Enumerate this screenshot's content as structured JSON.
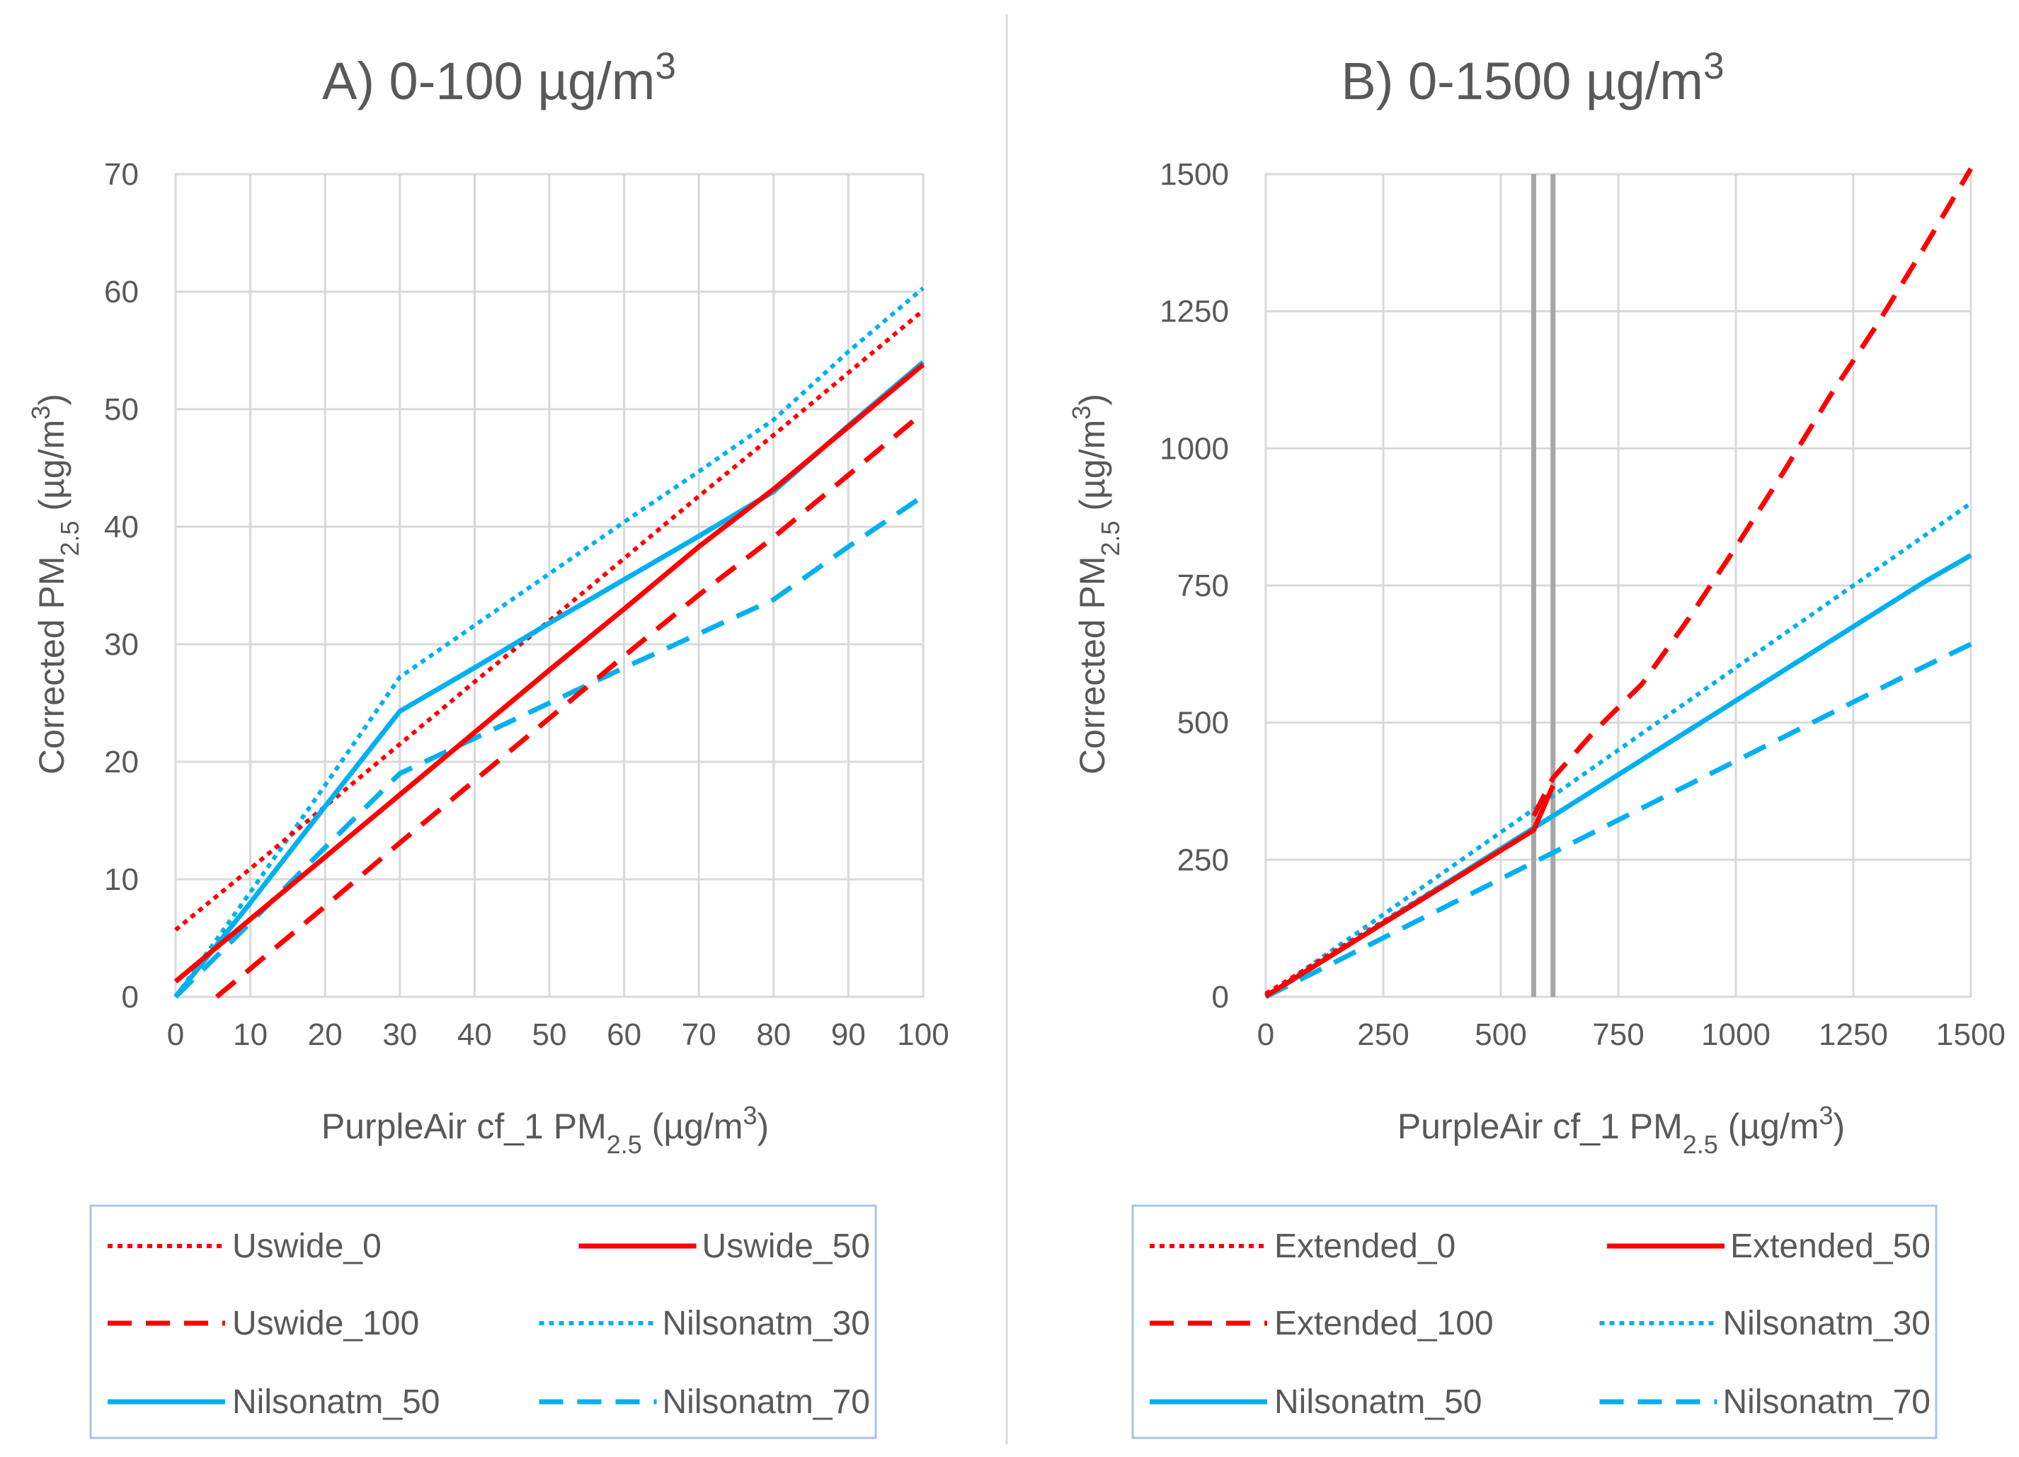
{
  "chart_data": [
    {
      "type": "line",
      "title": "A) 0-100 µg/m³",
      "xlabel": "PurpleAir cf_1 PM2.5 (µg/m³)",
      "ylabel": "Corrected PM2.5 (µg/m³)",
      "xlim": [
        0,
        100
      ],
      "ylim": [
        0,
        70
      ],
      "xticks": [
        0,
        10,
        20,
        30,
        40,
        50,
        60,
        70,
        80,
        90,
        100
      ],
      "yticks": [
        0,
        10,
        20,
        30,
        40,
        50,
        60,
        70
      ],
      "grid": true,
      "legend_position": "bottom",
      "vlines": [],
      "series": [
        {
          "name": "Uswide_0",
          "color": "#ff0000",
          "dash": "dot",
          "x": [
            0,
            10,
            20,
            30,
            40,
            50,
            60,
            70,
            80,
            90,
            100
          ],
          "y": [
            5.7,
            10.9,
            16.2,
            21.5,
            26.8,
            32.0,
            37.3,
            42.6,
            47.8,
            53.1,
            58.4
          ]
        },
        {
          "name": "Uswide_50",
          "color": "#ff0000",
          "dash": "solid",
          "x": [
            0,
            10,
            20,
            30,
            40,
            50,
            60,
            70,
            80,
            90,
            100
          ],
          "y": [
            1.3,
            6.6,
            11.9,
            17.2,
            22.5,
            27.8,
            33.0,
            38.3,
            43.2,
            48.5,
            53.8
          ]
        },
        {
          "name": "Uswide_100",
          "color": "#ff0000",
          "dash": "dash",
          "x": [
            5.5,
            20,
            30,
            40,
            50,
            60,
            70,
            80,
            90,
            100
          ],
          "y": [
            0,
            7.7,
            13.1,
            18.4,
            23.7,
            29.0,
            34.2,
            39.1,
            44.4,
            49.7
          ]
        },
        {
          "name": "Nilsonatm_30",
          "color": "#00b0f0",
          "dash": "dot",
          "x": [
            0,
            10,
            20,
            30,
            40,
            50,
            60,
            70,
            80,
            90,
            100
          ],
          "y": [
            0,
            8.9,
            18.0,
            27.2,
            31.6,
            36.0,
            40.4,
            44.7,
            49.1,
            54.9,
            60.3
          ]
        },
        {
          "name": "Nilsonatm_50",
          "color": "#00b0f0",
          "dash": "solid",
          "x": [
            0,
            10,
            20,
            30,
            40,
            50,
            60,
            70,
            80,
            90,
            100
          ],
          "y": [
            0,
            8.0,
            16.2,
            24.3,
            28.0,
            31.8,
            35.5,
            39.2,
            43.0,
            48.6,
            54.0
          ]
        },
        {
          "name": "Nilsonatm_70",
          "color": "#00b0f0",
          "dash": "dash",
          "x": [
            0,
            10,
            20,
            30,
            40,
            50,
            60,
            70,
            80,
            90,
            100
          ],
          "y": [
            0,
            6.3,
            12.7,
            19.0,
            22.0,
            25.0,
            28.0,
            30.9,
            33.8,
            38.3,
            42.6
          ]
        }
      ],
      "legend": [
        "Uswide_0",
        "Uswide_50",
        "Uswide_100",
        "Nilsonatm_30",
        "Nilsonatm_50",
        "Nilsonatm_70"
      ]
    },
    {
      "type": "line",
      "title": "B) 0-1500 µg/m³",
      "xlabel": "PurpleAir cf_1 PM2.5 (µg/m³)",
      "ylabel": "Corrected PM2.5 (µg/m³)",
      "xlim": [
        0,
        1500
      ],
      "ylim": [
        0,
        1500
      ],
      "xticks": [
        0,
        250,
        500,
        750,
        1000,
        1250,
        1500
      ],
      "yticks": [
        0,
        250,
        500,
        750,
        1000,
        1250,
        1500
      ],
      "grid": true,
      "legend_position": "bottom",
      "vlines": [
        570,
        611
      ],
      "series": [
        {
          "name": "Extended_0",
          "color": "#ff0000",
          "dash": "dot",
          "x": [
            0,
            100,
            200,
            300,
            400,
            500,
            570
          ],
          "y": [
            5.7,
            58.5,
            111.3,
            164.1,
            216.9,
            269.7,
            306.7
          ]
        },
        {
          "name": "Extended_50",
          "color": "#ff0000",
          "dash": "solid",
          "x": [
            0,
            100,
            200,
            300,
            400,
            500,
            570,
            611
          ],
          "y": [
            1.3,
            54.4,
            107.5,
            160.6,
            213.7,
            266.8,
            304.0,
            385.0
          ]
        },
        {
          "name": "Extended_100",
          "color": "#ff0000",
          "dash": "dash",
          "x": [
            570,
            611,
            700,
            800,
            900,
            1000,
            1100,
            1200,
            1300,
            1400,
            1500
          ],
          "y": [
            330,
            399,
            485,
            570,
            690,
            820,
            955,
            1095,
            1225,
            1365,
            1510
          ]
        },
        {
          "name": "Nilsonatm_30",
          "color": "#00b0f0",
          "dash": "dot",
          "x": [
            0,
            100,
            200,
            300,
            400,
            500,
            600,
            700,
            800,
            900,
            1000,
            1100,
            1200,
            1300,
            1400,
            1500
          ],
          "y": [
            0,
            60,
            120,
            180,
            240,
            300,
            360,
            420,
            480,
            540,
            600,
            660,
            720,
            780,
            840,
            900
          ]
        },
        {
          "name": "Nilsonatm_50",
          "color": "#00b0f0",
          "dash": "solid",
          "x": [
            0,
            100,
            200,
            300,
            400,
            500,
            600,
            700,
            800,
            900,
            1000,
            1100,
            1200,
            1300,
            1400,
            1500
          ],
          "y": [
            0,
            54,
            108,
            162,
            216,
            270,
            324,
            378,
            432,
            486,
            540,
            594,
            648,
            702,
            756,
            805
          ]
        },
        {
          "name": "Nilsonatm_70",
          "color": "#00b0f0",
          "dash": "dash",
          "x": [
            0,
            100,
            200,
            300,
            400,
            500,
            600,
            700,
            800,
            900,
            1000,
            1100,
            1200,
            1300,
            1400,
            1500
          ],
          "y": [
            0,
            43,
            86,
            129,
            172,
            215,
            258,
            301,
            344,
            387,
            430,
            473,
            516,
            559,
            602,
            643
          ]
        }
      ],
      "legend": [
        "Extended_0",
        "Extended_50",
        "Extended_100",
        "Nilsonatm_30",
        "Nilsonatm_50",
        "Nilsonatm_70"
      ]
    }
  ]
}
